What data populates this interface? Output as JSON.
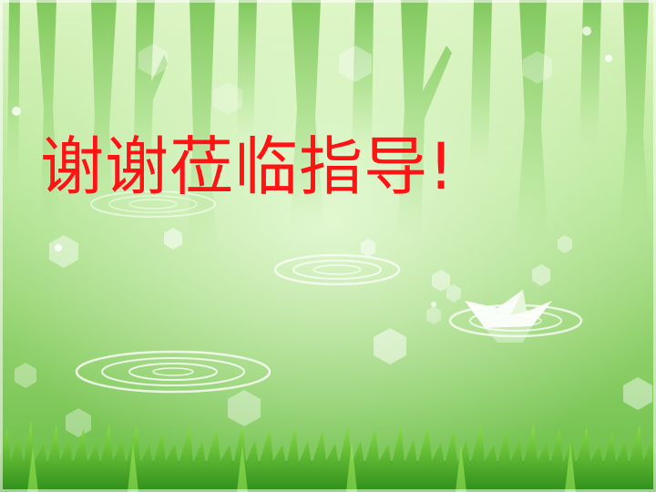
{
  "slide": {
    "title": "谢谢莅临指导!"
  },
  "colors": {
    "title_text": "#ff1414",
    "background_light": "#dff5c4",
    "background_mid": "#9ed878",
    "background_dark": "#62b83c",
    "tree_trunk": "#7ec85a",
    "grass": "#3fa428"
  },
  "decorations": {
    "scene": "misty-forest-pond",
    "items": [
      "tree-trunks",
      "water-ripples",
      "paper-boat",
      "hexagon-bokeh",
      "grass"
    ]
  }
}
